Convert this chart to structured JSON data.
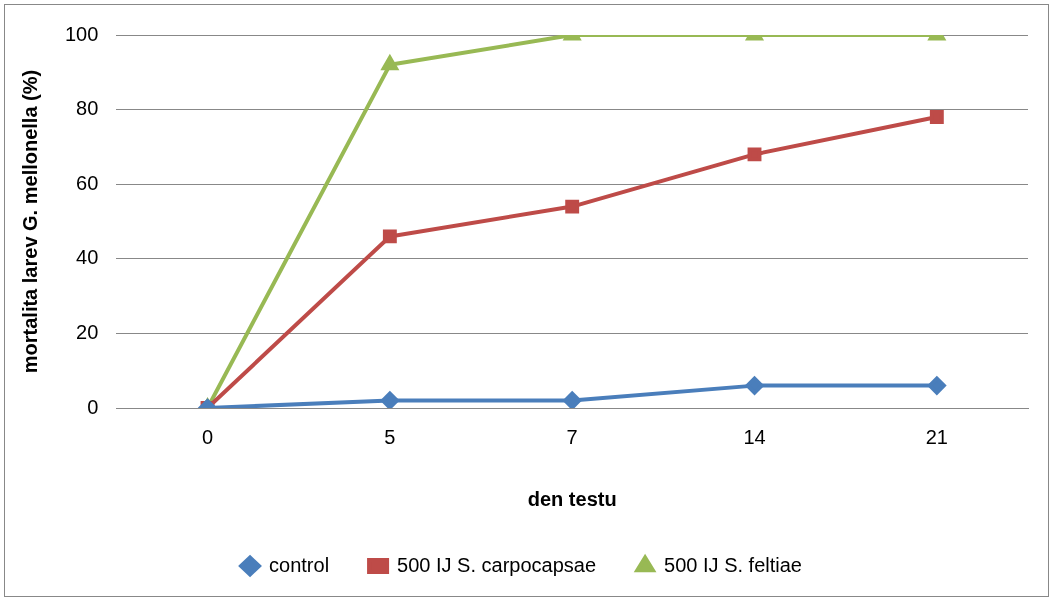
{
  "chart_data": {
    "type": "line",
    "xlabel": "den testu",
    "ylabel": "mortalita larev G. mellonella (%)",
    "categories": [
      "0",
      "5",
      "7",
      "14",
      "21"
    ],
    "series": [
      {
        "name": "control",
        "color": "#4a7ebb",
        "marker": "diamond",
        "values": [
          0,
          2,
          2,
          6,
          6
        ]
      },
      {
        "name": "500 IJ S. carpocapsae",
        "color": "#be4b48",
        "marker": "square",
        "values": [
          0,
          46,
          54,
          68,
          78
        ]
      },
      {
        "name": "500 IJ S. feltiae",
        "color": "#98b954",
        "marker": "triangle",
        "values": [
          0,
          92,
          100,
          100,
          100
        ]
      }
    ],
    "ylim": [
      0,
      100
    ],
    "yticks": [
      0,
      20,
      40,
      60,
      80,
      100
    ],
    "grid": "y",
    "legend": "bottom",
    "line_style": "solid"
  }
}
